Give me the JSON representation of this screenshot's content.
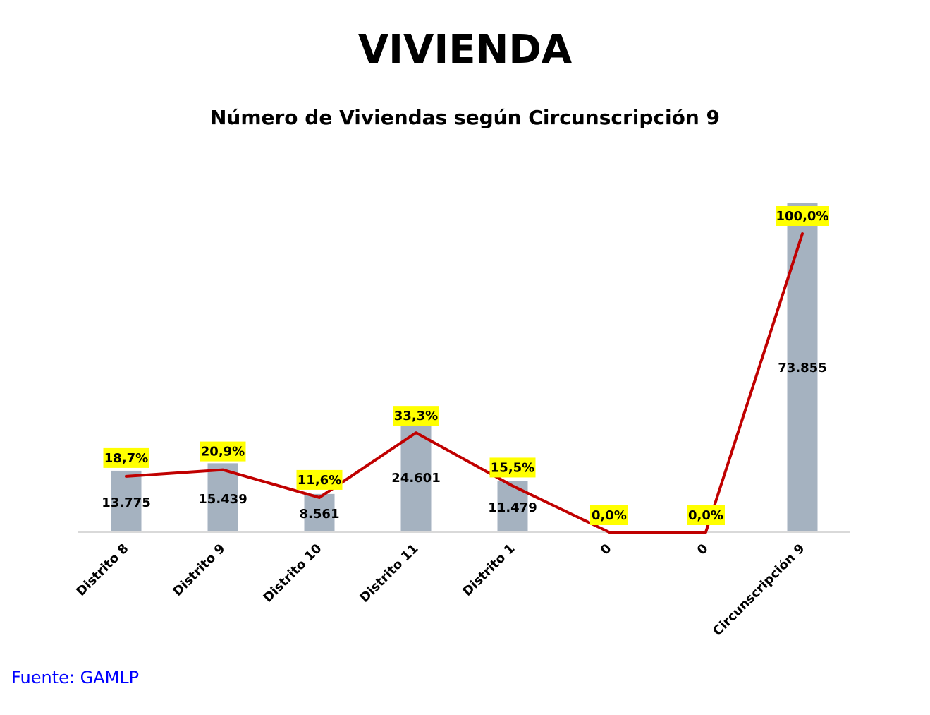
{
  "page": {
    "title": "VIVIENDA",
    "source": "Fuente: GAMLP"
  },
  "chart_data": {
    "type": "bar",
    "title": "Número de Viviendas según Circunscripción 9",
    "xlabel": "",
    "ylabel": "",
    "categories": [
      "Distrito 8",
      "Distrito 9",
      "Distrito 10",
      "Distrito 11",
      "Distrito 1",
      "0",
      "0",
      "Circunscripción 9"
    ],
    "series": [
      {
        "type": "bar",
        "values": [
          13775,
          15439,
          8561,
          24601,
          11479,
          0,
          0,
          73855
        ],
        "labels": [
          "13.775",
          "15.439",
          "8.561",
          "24.601",
          "11.479",
          "",
          "",
          "73.855"
        ],
        "color": "#a5b2c0"
      },
      {
        "type": "line",
        "values": [
          18.7,
          20.9,
          11.6,
          33.3,
          15.5,
          0.0,
          0.0,
          100.0
        ],
        "labels": [
          "18,7%",
          "20,9%",
          "11,6%",
          "33,3%",
          "15,5%",
          "0,0%",
          "0,0%",
          "100,0%"
        ],
        "color": "#c00000"
      }
    ],
    "label_highlight_color": "#ffff00",
    "grid": false,
    "legend": "none"
  }
}
